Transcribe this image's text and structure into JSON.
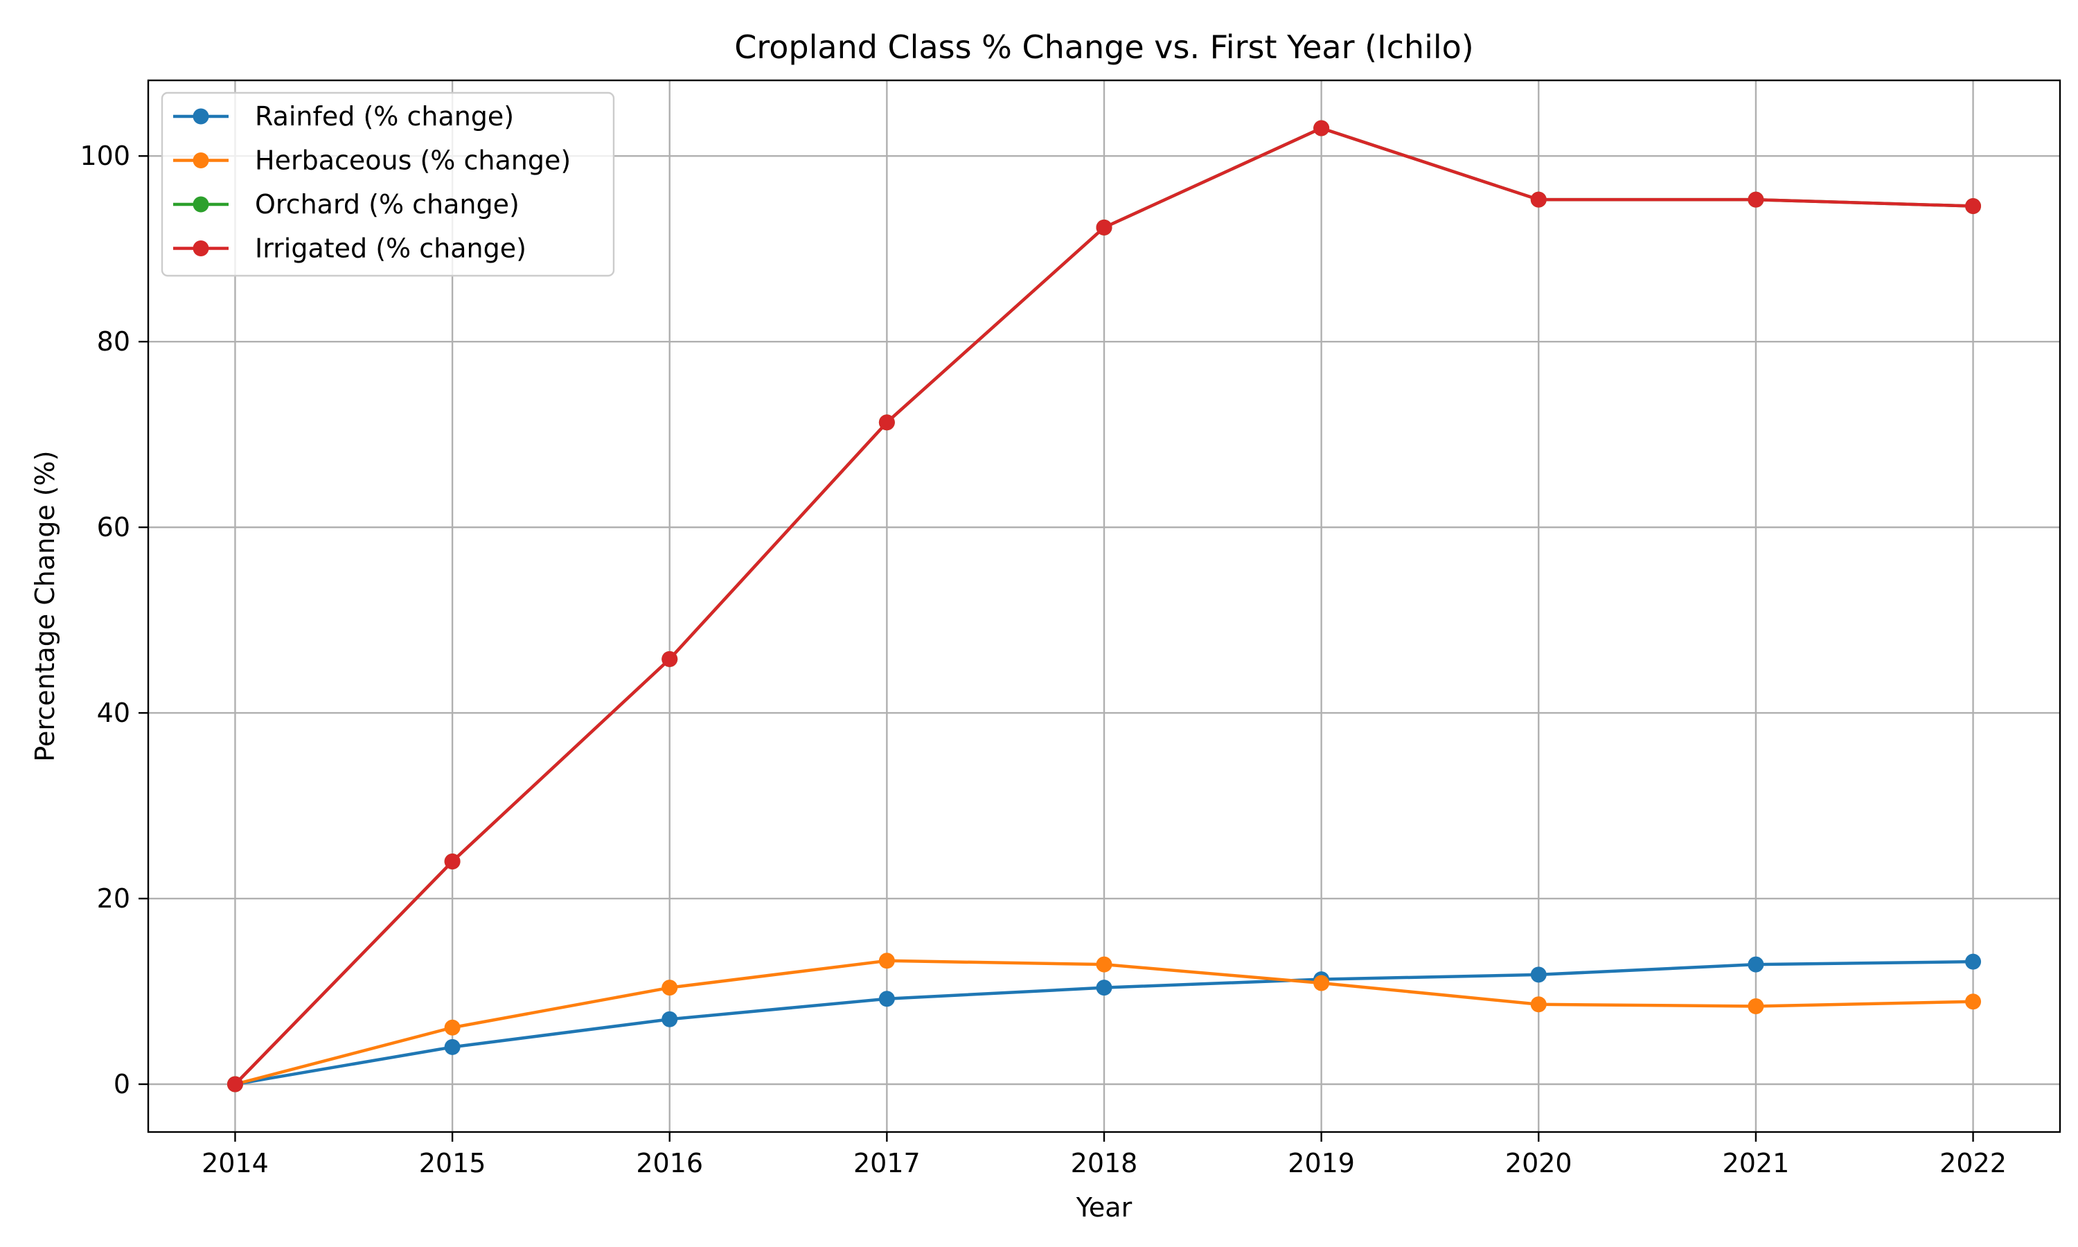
{
  "chart_data": {
    "type": "line",
    "title": "Cropland Class % Change vs. First Year (Ichilo)",
    "xlabel": "Year",
    "ylabel": "Percentage Change (%)",
    "x": [
      2014,
      2015,
      2016,
      2017,
      2018,
      2019,
      2020,
      2021,
      2022
    ],
    "xlim": [
      2013.6,
      2022.4
    ],
    "ylim": [
      -5.15,
      108.15
    ],
    "yticks": [
      0,
      20,
      40,
      60,
      80,
      100
    ],
    "grid": true,
    "legend_position": "top-left",
    "series": [
      {
        "name": "Rainfed (% change)",
        "color": "#1f77b4",
        "values": [
          0,
          4.0,
          7.0,
          9.2,
          10.4,
          11.3,
          11.8,
          12.9,
          13.2
        ]
      },
      {
        "name": "Herbaceous (% change)",
        "color": "#ff7f0e",
        "values": [
          0,
          6.1,
          10.4,
          13.3,
          12.9,
          10.9,
          8.6,
          8.4,
          8.9
        ]
      },
      {
        "name": "Orchard (% change)",
        "color": "#2ca02c",
        "values": [
          0,
          24.0,
          45.8,
          71.3,
          92.3,
          103.0,
          95.3,
          95.3,
          94.6
        ]
      },
      {
        "name": "Irrigated (% change)",
        "color": "#d62728",
        "values": [
          0,
          24.0,
          45.8,
          71.3,
          92.3,
          103.0,
          95.3,
          95.3,
          94.6
        ]
      }
    ]
  }
}
